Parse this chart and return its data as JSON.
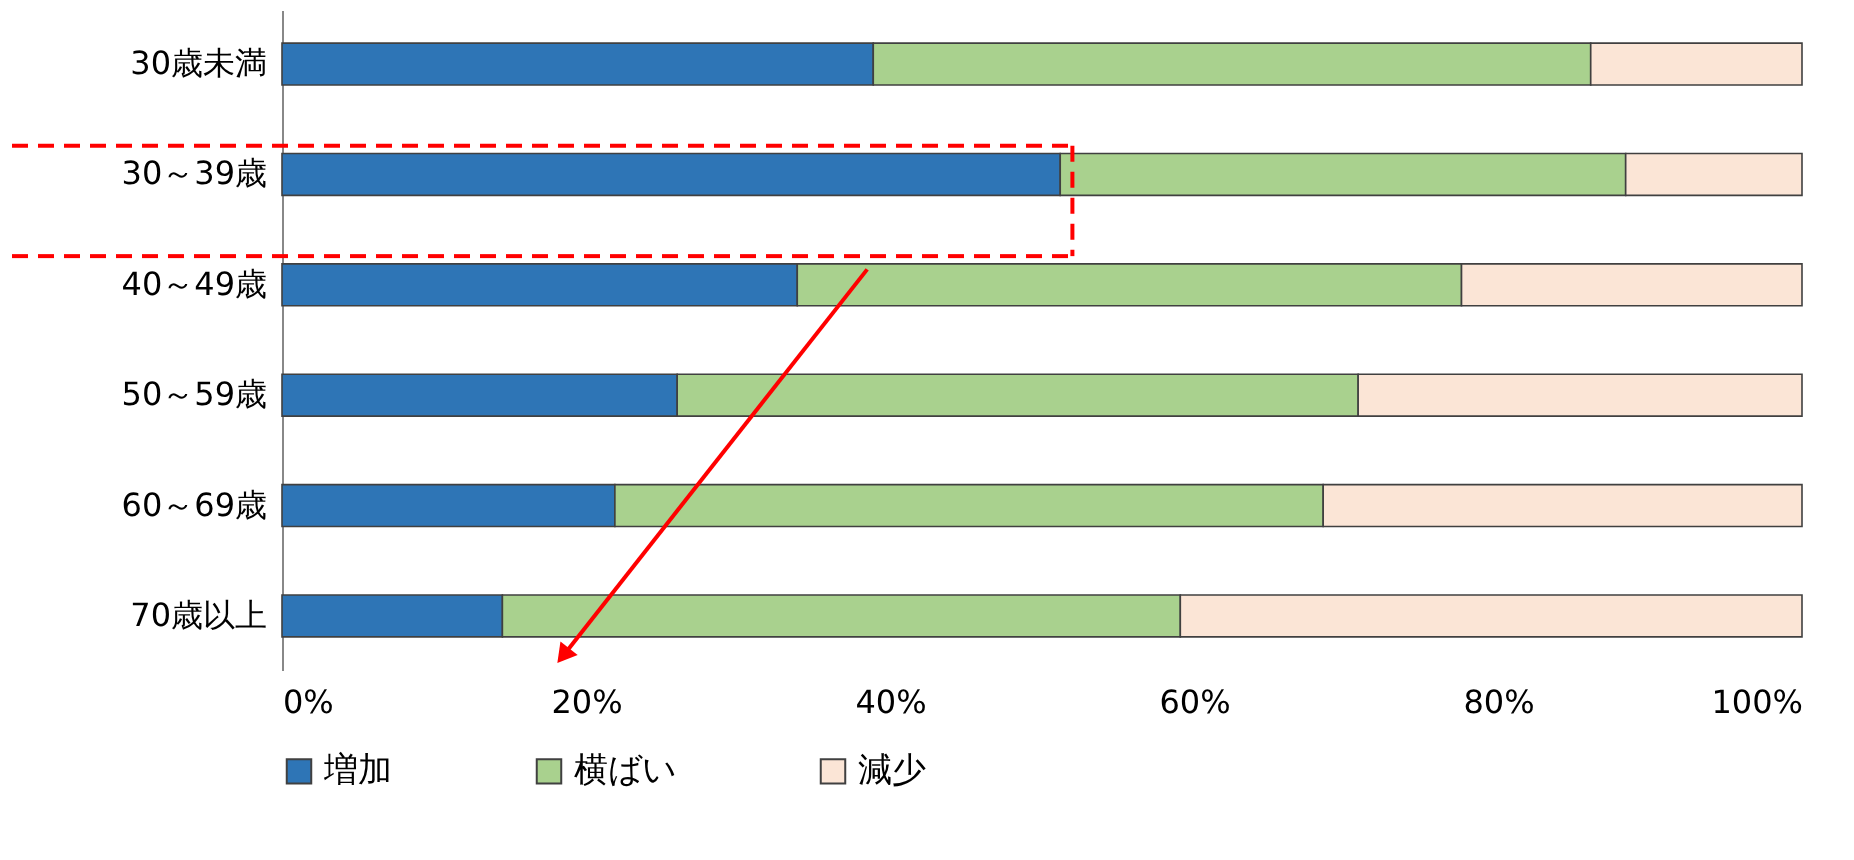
{
  "chart_data": {
    "type": "bar",
    "orientation": "horizontal",
    "stacked": true,
    "categories": [
      "30歳未満",
      "30～39歳",
      "40～49歳",
      "50～59歳",
      "60～69歳",
      "70歳以上"
    ],
    "series": [
      {
        "name": "増加",
        "color": "#2e75b6",
        "values": [
          38.9,
          51.2,
          33.9,
          26.0,
          21.9,
          14.5
        ]
      },
      {
        "name": "横ばい",
        "color": "#a9d18e",
        "values": [
          47.2,
          37.2,
          43.7,
          44.8,
          46.6,
          44.6
        ]
      },
      {
        "name": "減少",
        "color": "#fbe5d6",
        "values": [
          13.9,
          11.6,
          22.4,
          29.2,
          31.5,
          40.9
        ]
      }
    ],
    "xlim": [
      0,
      100
    ],
    "xticks": [
      {
        "value": 0,
        "label": "0%"
      },
      {
        "value": 20,
        "label": "20%"
      },
      {
        "value": 40,
        "label": "40%"
      },
      {
        "value": 60,
        "label": "60%"
      },
      {
        "value": 80,
        "label": "80%"
      },
      {
        "value": 100,
        "label": "100%"
      }
    ],
    "grid": false,
    "legend": "bottom"
  }
}
